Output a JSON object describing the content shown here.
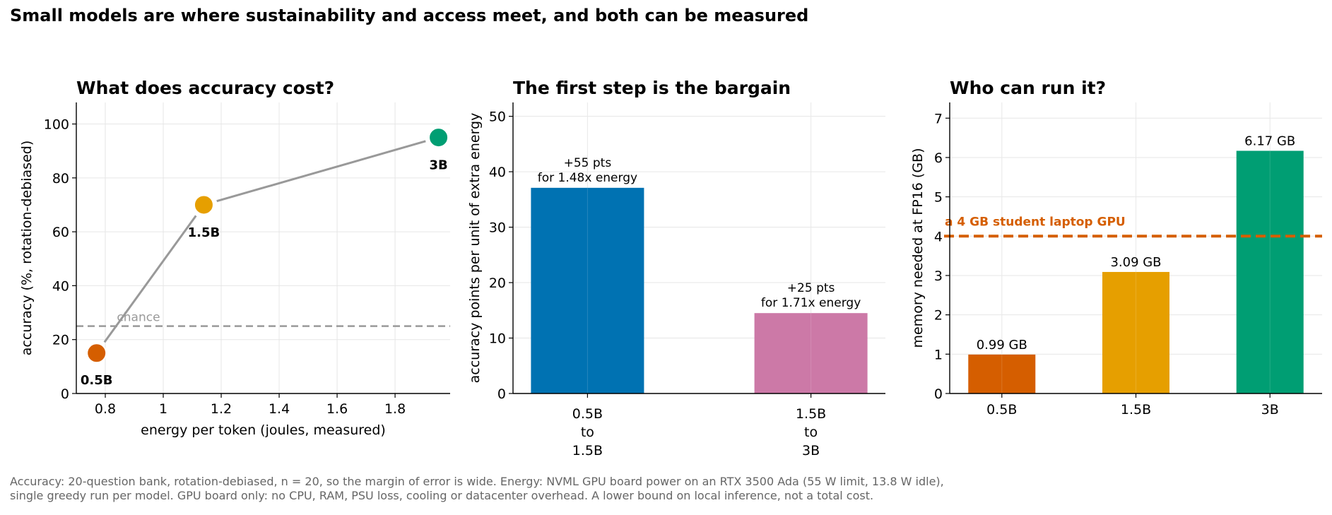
{
  "suptitle": "Small models are where sustainability and access meet, and both can be measured",
  "footnote": {
    "line1": "Accuracy: 20-question bank, rotation-debiased, n = 20, so the margin of error is wide. Energy: NVML GPU board power on an RTX 3500 Ada (55 W limit, 13.8 W idle),",
    "line2": "single greedy run per model. GPU board only: no CPU, RAM, PSU loss, cooling or datacenter overhead. A lower bound on local inference, not a total cost."
  },
  "colors": {
    "orange": "#d55e00",
    "yellow": "#e69f00",
    "green": "#009e73",
    "blue": "#0072b2",
    "pink": "#cc79a7",
    "grey": "#999999"
  },
  "chart_data": [
    {
      "type": "line",
      "title": "What does accuracy cost?",
      "xlabel": "energy per token (joules, measured)",
      "ylabel": "accuracy (%, rotation-debiased)",
      "xlim": [
        0.7,
        1.99
      ],
      "ylim": [
        0,
        108
      ],
      "xticks": [
        0.8,
        1.0,
        1.2,
        1.4,
        1.6,
        1.8
      ],
      "yticks": [
        0,
        20,
        40,
        60,
        80,
        100
      ],
      "grid": true,
      "points": [
        {
          "label": "0.5B",
          "x": 0.77,
          "y": 15,
          "color": "#d55e00"
        },
        {
          "label": "1.5B",
          "x": 1.14,
          "y": 70,
          "color": "#e69f00"
        },
        {
          "label": "3B",
          "x": 1.95,
          "y": 95,
          "color": "#009e73"
        }
      ],
      "reference_line": {
        "y": 25,
        "label": "chance"
      }
    },
    {
      "type": "bar",
      "title": "The first step is the bargain",
      "xlabel": "",
      "ylabel": "accuracy points per unit of extra energy",
      "ylim": [
        0,
        52.5
      ],
      "yticks": [
        0,
        10,
        20,
        30,
        40,
        50
      ],
      "grid": true,
      "categories": [
        {
          "lines": [
            "0.5B",
            "to",
            "1.5B"
          ]
        },
        {
          "lines": [
            "1.5B",
            "to",
            "3B"
          ]
        }
      ],
      "values": [
        37.1,
        14.5
      ],
      "colors": [
        "#0072b2",
        "#cc79a7"
      ],
      "annotations": [
        [
          "+55 pts",
          "for 1.48x energy"
        ],
        [
          "+25 pts",
          "for 1.71x energy"
        ]
      ]
    },
    {
      "type": "bar",
      "title": "Who can run it?",
      "xlabel": "",
      "ylabel": "memory needed at FP16 (GB)",
      "ylim": [
        0,
        7.4
      ],
      "yticks": [
        0,
        1,
        2,
        3,
        4,
        5,
        6,
        7
      ],
      "grid": true,
      "categories": [
        "0.5B",
        "1.5B",
        "3B"
      ],
      "values": [
        0.99,
        3.09,
        6.17
      ],
      "value_labels": [
        "0.99 GB",
        "3.09 GB",
        "6.17 GB"
      ],
      "colors": [
        "#d55e00",
        "#e69f00",
        "#009e73"
      ],
      "reference_line": {
        "y": 4,
        "label": "a 4 GB student laptop GPU"
      }
    }
  ]
}
